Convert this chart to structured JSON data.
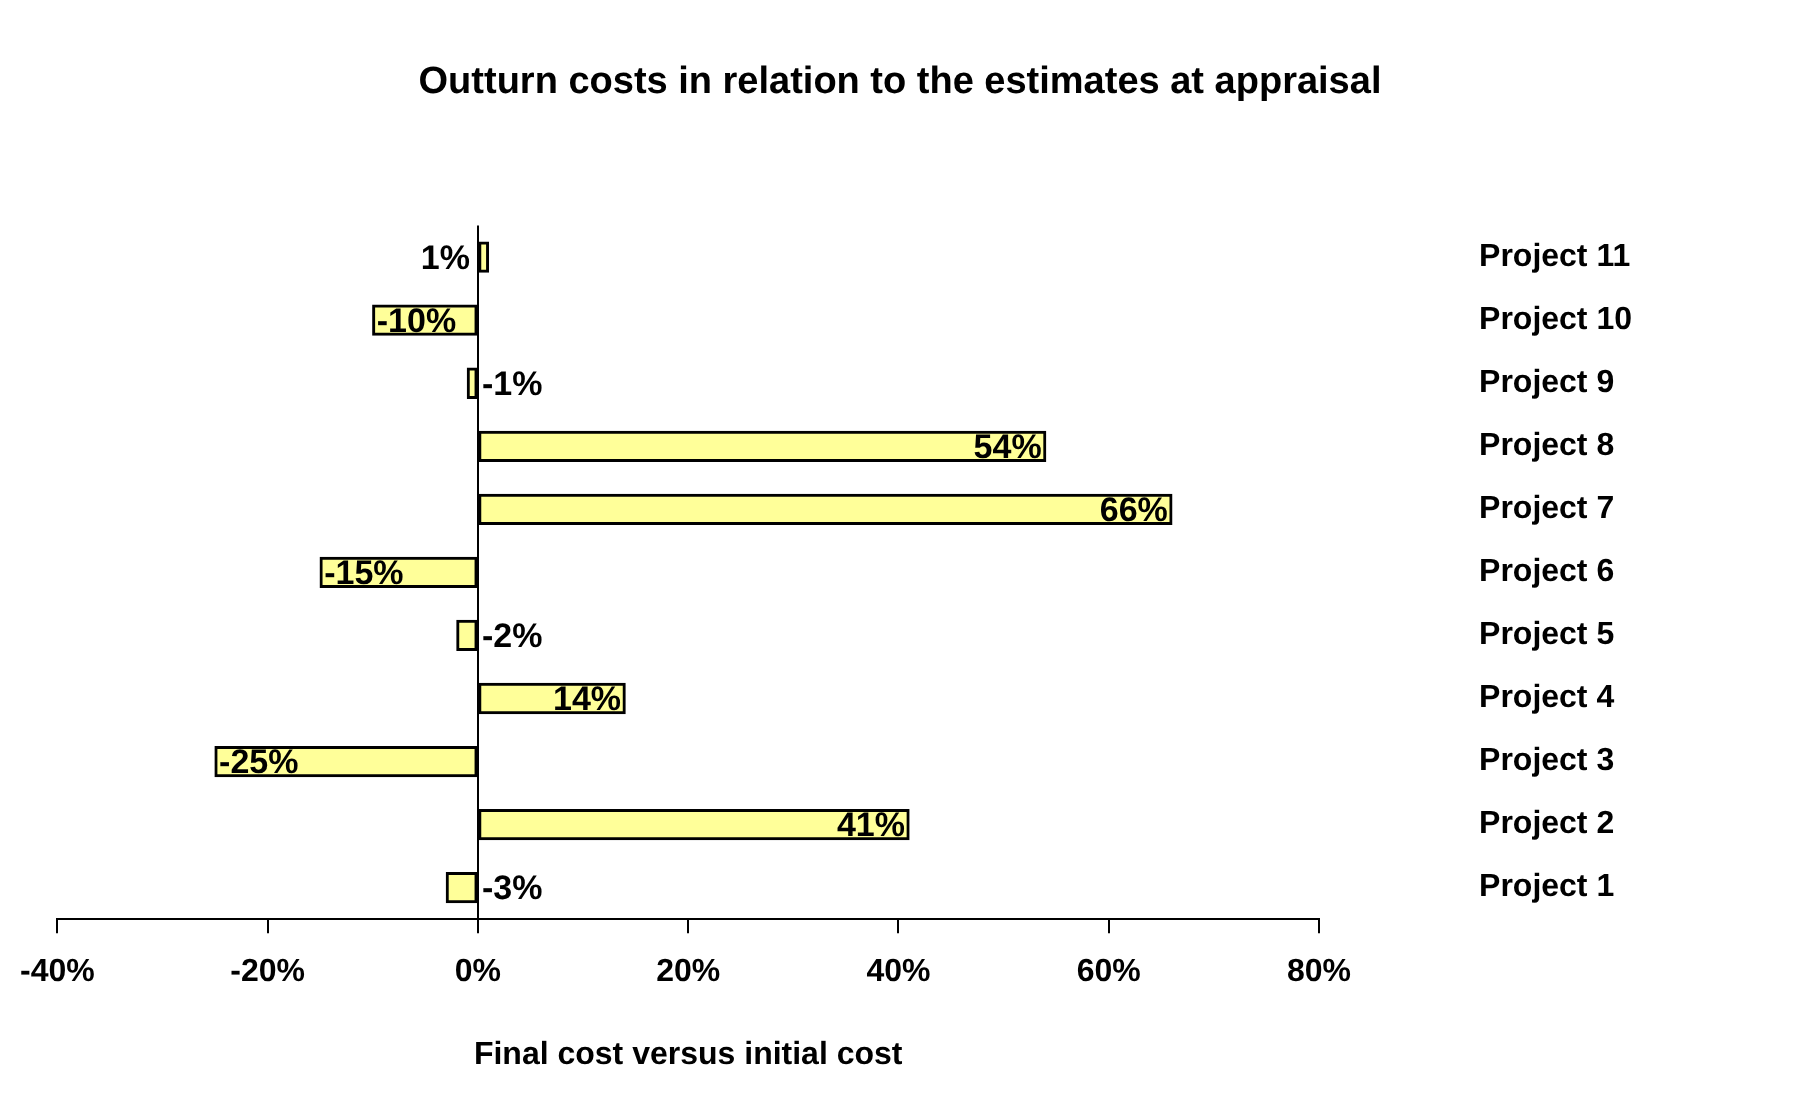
{
  "chart_data": {
    "type": "bar",
    "orientation": "horizontal",
    "title": "Outturn costs in relation to the estimates at appraisal",
    "xlabel": "Final cost versus initial cost",
    "categories": [
      "Project 11",
      "Project 10",
      "Project 9",
      "Project 8",
      "Project 7",
      "Project 6",
      "Project 5",
      "Project 4",
      "Project 3",
      "Project 2",
      "Project 1"
    ],
    "values": [
      1,
      -10,
      -1,
      54,
      66,
      -15,
      -2,
      14,
      -25,
      41,
      -3
    ],
    "value_labels": [
      "1%",
      "-10%",
      "-1%",
      "54%",
      "66%",
      "-15%",
      "-2%",
      "14%",
      "-25%",
      "41%",
      "-3%"
    ],
    "color": "#ffff99",
    "xlim": [
      -40,
      80
    ],
    "xticks": [
      {
        "value": -40,
        "label": "-40%"
      },
      {
        "value": -20,
        "label": "-20%"
      },
      {
        "value": 0,
        "label": "0%"
      },
      {
        "value": 20,
        "label": "20%"
      },
      {
        "value": 40,
        "label": "40%"
      },
      {
        "value": 60,
        "label": "60%"
      },
      {
        "value": 80,
        "label": "80%"
      }
    ],
    "legend": false
  }
}
